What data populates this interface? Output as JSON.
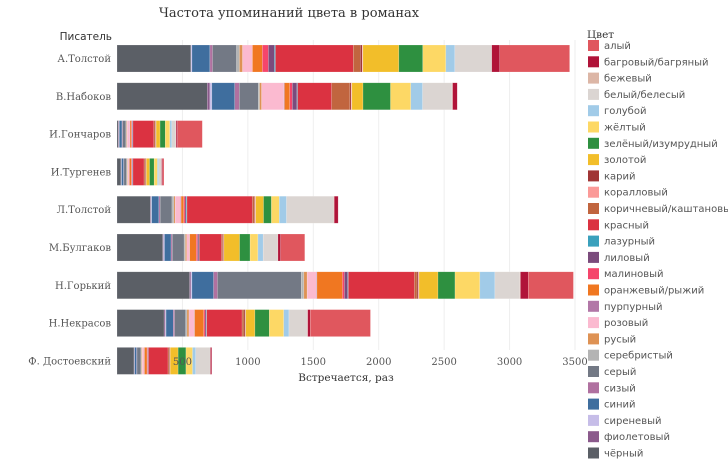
{
  "chart_data": {
    "type": "bar",
    "orientation": "horizontal",
    "stacked": true,
    "title": "Частота упоминаний цвета в романах",
    "xlabel": "Встречается, раз",
    "ylabel": "Писатель",
    "xlim": [
      0,
      3500
    ],
    "xticks": [
      500,
      1000,
      1500,
      2000,
      2500,
      3000,
      3500
    ],
    "grid": true,
    "legend": {
      "title": "Цвет",
      "placement": "right"
    },
    "categories": [
      "А.Толстой",
      "В.Набоков",
      "И.Гончаров",
      "И.Тургенев",
      "Л.Толстой",
      "М.Булгаков",
      "Н.Горький",
      "Н.Некрасов",
      "Ф. Достоевский"
    ],
    "series": [
      {
        "name": "чёрный",
        "color": "#5b5f66",
        "values": [
          565,
          690,
          10,
          30,
          255,
          350,
          555,
          360,
          130
        ]
      },
      {
        "name": "фиолетовый",
        "color": "#8b5a8c",
        "values": [
          0,
          20,
          5,
          3,
          5,
          5,
          10,
          10,
          3
        ]
      },
      {
        "name": "сиреневый",
        "color": "#c6bde8",
        "values": [
          8,
          15,
          3,
          2,
          5,
          8,
          8,
          5,
          2
        ]
      },
      {
        "name": "синий",
        "color": "#3f6e9e",
        "values": [
          137,
          175,
          20,
          15,
          55,
          50,
          165,
          55,
          15
        ]
      },
      {
        "name": "сизый",
        "color": "#b071a0",
        "values": [
          20,
          35,
          5,
          3,
          10,
          10,
          30,
          10,
          3
        ]
      },
      {
        "name": "серый",
        "color": "#737985",
        "values": [
          183,
          145,
          25,
          20,
          90,
          90,
          640,
          85,
          30
        ]
      },
      {
        "name": "серебристый",
        "color": "#b4b4b4",
        "values": [
          23,
          10,
          5,
          5,
          15,
          10,
          20,
          10,
          5
        ]
      },
      {
        "name": "русый",
        "color": "#de9254",
        "values": [
          23,
          15,
          5,
          5,
          10,
          10,
          25,
          15,
          5
        ]
      },
      {
        "name": "розовый",
        "color": "#fbbad0",
        "values": [
          76,
          170,
          20,
          10,
          40,
          20,
          70,
          40,
          15
        ]
      },
      {
        "name": "пурпурный",
        "color": "#b277a7",
        "values": [
          0,
          5,
          2,
          2,
          5,
          3,
          5,
          3,
          2
        ]
      },
      {
        "name": "оранжевый/рыжий",
        "color": "#f07721",
        "values": [
          76,
          40,
          10,
          15,
          20,
          50,
          195,
          70,
          20
        ]
      },
      {
        "name": "малиновый",
        "color": "#f5456b",
        "values": [
          46,
          20,
          5,
          5,
          10,
          10,
          15,
          10,
          5
        ]
      },
      {
        "name": "лиловый",
        "color": "#7b4b7c",
        "values": [
          46,
          35,
          5,
          5,
          10,
          10,
          25,
          10,
          3
        ]
      },
      {
        "name": "лазурный",
        "color": "#3aa0bc",
        "values": [
          8,
          5,
          2,
          2,
          5,
          3,
          5,
          3,
          2
        ]
      },
      {
        "name": "красный",
        "color": "#db3241",
        "values": [
          595,
          260,
          160,
          85,
          500,
          170,
          505,
          270,
          150
        ]
      },
      {
        "name": "коричневый/каштановый",
        "color": "#c1653f",
        "values": [
          53,
          140,
          10,
          10,
          15,
          10,
          20,
          15,
          10
        ]
      },
      {
        "name": "карий",
        "color": "#a03535",
        "values": [
          15,
          10,
          5,
          5,
          5,
          5,
          10,
          10,
          5
        ]
      },
      {
        "name": "коралловый",
        "color": "#fb9a98",
        "values": [
          5,
          5,
          2,
          2,
          5,
          3,
          5,
          3,
          2
        ]
      },
      {
        "name": "золотой",
        "color": "#f2be2a",
        "values": [
          275,
          85,
          30,
          25,
          60,
          120,
          145,
          70,
          60
        ]
      },
      {
        "name": "зелёный/изумрудный",
        "color": "#2e9040",
        "values": [
          183,
          210,
          40,
          35,
          60,
          80,
          130,
          110,
          60
        ]
      },
      {
        "name": "жёлтый",
        "color": "#fdd865",
        "values": [
          176,
          155,
          35,
          25,
          60,
          60,
          190,
          110,
          50
        ]
      },
      {
        "name": "голубой",
        "color": "#a1cbe8",
        "values": [
          69,
          90,
          15,
          10,
          55,
          40,
          115,
          40,
          25
        ]
      },
      {
        "name": "белый/белесый",
        "color": "#dbd5d2",
        "values": [
          282,
          225,
          30,
          20,
          360,
          110,
          190,
          140,
          110
        ]
      },
      {
        "name": "бежевый",
        "color": "#dcb6a6",
        "values": [
          0,
          5,
          3,
          2,
          5,
          3,
          5,
          3,
          2
        ]
      },
      {
        "name": "багровый/багряный",
        "color": "#b01439",
        "values": [
          61,
          35,
          10,
          8,
          30,
          20,
          60,
          20,
          10
        ]
      },
      {
        "name": "алый",
        "color": "#e0575e",
        "values": [
          534,
          0,
          190,
          10,
          0,
          185,
          345,
          460,
          0
        ]
      }
    ],
    "legend_order": [
      "алый",
      "багровый/багряный",
      "бежевый",
      "белый/белесый",
      "голубой",
      "жёлтый",
      "зелёный/изумрудный",
      "золотой",
      "карий",
      "коралловый",
      "коричневый/каштановый",
      "красный",
      "лазурный",
      "лиловый",
      "малиновый",
      "оранжевый/рыжий",
      "пурпурный",
      "розовый",
      "русый",
      "серебристый",
      "серый",
      "сизый",
      "синий",
      "сиреневый",
      "фиолетовый",
      "чёрный"
    ]
  }
}
